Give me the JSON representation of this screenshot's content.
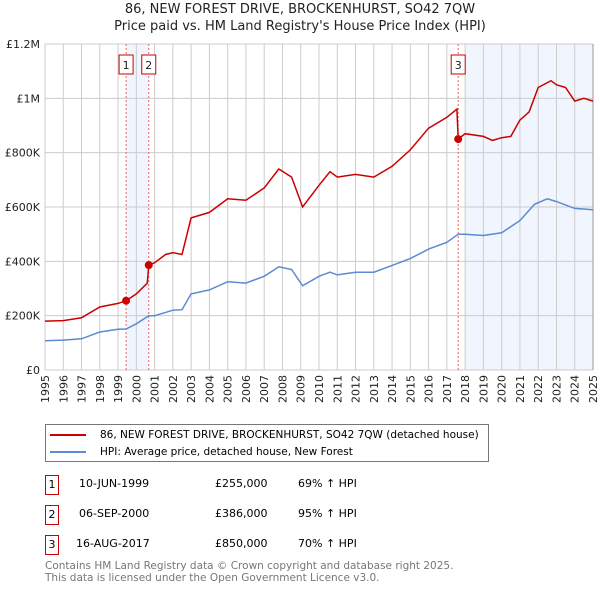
{
  "title_line1": "86, NEW FOREST DRIVE, BROCKENHURST, SO42 7QW",
  "title_line2": "Price paid vs. HM Land Registry's House Price Index (HPI)",
  "chart_data": {
    "type": "line",
    "xlim": [
      1995,
      2025
    ],
    "ylim": [
      0,
      1200000
    ],
    "yticks": [
      0,
      200000,
      400000,
      600000,
      800000,
      1000000,
      1200000
    ],
    "ytick_labels": [
      "£0",
      "£200K",
      "£400K",
      "£600K",
      "£800K",
      "£1M",
      "£1.2M"
    ],
    "xticks": [
      "1995",
      "1996",
      "1997",
      "1998",
      "1999",
      "2000",
      "2001",
      "2002",
      "2003",
      "2004",
      "2005",
      "2006",
      "2007",
      "2008",
      "2009",
      "2010",
      "2011",
      "2012",
      "2013",
      "2014",
      "2015",
      "2016",
      "2017",
      "2018",
      "2019",
      "2020",
      "2021",
      "2022",
      "2023",
      "2024",
      "2025"
    ],
    "grid": true,
    "shaded_ranges": [
      [
        1999.44,
        2000.68
      ],
      [
        2018.0,
        2025
      ]
    ],
    "series": [
      {
        "name": "86, NEW FOREST DRIVE, BROCKENHURST, SO42 7QW (detached house)",
        "color": "#cc0000",
        "x": [
          1995,
          1996,
          1997,
          1998,
          1999,
          1999.44,
          2000,
          2000.6,
          2000.68,
          2001,
          2001.6,
          2002,
          2002.5,
          2003,
          2004,
          2005,
          2006,
          2007,
          2007.8,
          2008.5,
          2009.1,
          2010,
          2010.6,
          2011,
          2012,
          2013,
          2014,
          2015,
          2016,
          2017,
          2017.55,
          2017.62,
          2018,
          2019,
          2019.5,
          2020,
          2020.5,
          2021,
          2021.5,
          2022,
          2022.7,
          2023,
          2023.5,
          2024,
          2024.5,
          2025
        ],
        "y": [
          180000,
          182000,
          192000,
          232000,
          245000,
          255000,
          280000,
          320000,
          386000,
          395000,
          425000,
          432000,
          425000,
          560000,
          580000,
          630000,
          625000,
          670000,
          740000,
          710000,
          600000,
          680000,
          730000,
          710000,
          720000,
          710000,
          750000,
          810000,
          890000,
          930000,
          960000,
          850000,
          870000,
          860000,
          845000,
          855000,
          860000,
          920000,
          950000,
          1040000,
          1065000,
          1050000,
          1040000,
          990000,
          1000000,
          990000
        ]
      },
      {
        "name": "HPI: Average price, detached house, New Forest",
        "color": "#5b8bd0",
        "x": [
          1995,
          1996,
          1997,
          1998,
          1999,
          1999.44,
          2000,
          2000.68,
          2001,
          2002,
          2002.5,
          2003,
          2004,
          2005,
          2006,
          2007,
          2007.8,
          2008.5,
          2009.1,
          2010,
          2010.6,
          2011,
          2012,
          2013,
          2014,
          2015,
          2016,
          2017,
          2017.62,
          2018,
          2019,
          2020,
          2021,
          2021.8,
          2022.5,
          2023,
          2024,
          2025
        ],
        "y": [
          108000,
          110000,
          115000,
          140000,
          150000,
          151000,
          170000,
          200000,
          200000,
          220000,
          222000,
          280000,
          295000,
          325000,
          320000,
          345000,
          380000,
          370000,
          310000,
          345000,
          360000,
          350000,
          360000,
          360000,
          385000,
          410000,
          445000,
          470000,
          500000,
          500000,
          495000,
          505000,
          550000,
          610000,
          630000,
          620000,
          595000,
          590000
        ]
      }
    ],
    "sales": [
      {
        "label": "1",
        "x": 1999.44,
        "y": 255000
      },
      {
        "label": "2",
        "x": 2000.68,
        "y": 386000
      },
      {
        "label": "3",
        "x": 2017.62,
        "y": 850000
      }
    ]
  },
  "legend": {
    "property": "86, NEW FOREST DRIVE, BROCKENHURST, SO42 7QW (detached house)",
    "hpi": "HPI: Average price, detached house, New Forest"
  },
  "transactions": [
    {
      "num": "1",
      "date": "10-JUN-1999",
      "price": "£255,000",
      "hpi": "69% ↑ HPI"
    },
    {
      "num": "2",
      "date": "06-SEP-2000",
      "price": "£386,000",
      "hpi": "95% ↑ HPI"
    },
    {
      "num": "3",
      "date": "16-AUG-2017",
      "price": "£850,000",
      "hpi": "70% ↑ HPI"
    }
  ],
  "footer_line1": "Contains HM Land Registry data © Crown copyright and database right 2025.",
  "footer_line2": "This data is licensed under the Open Government Licence v3.0."
}
